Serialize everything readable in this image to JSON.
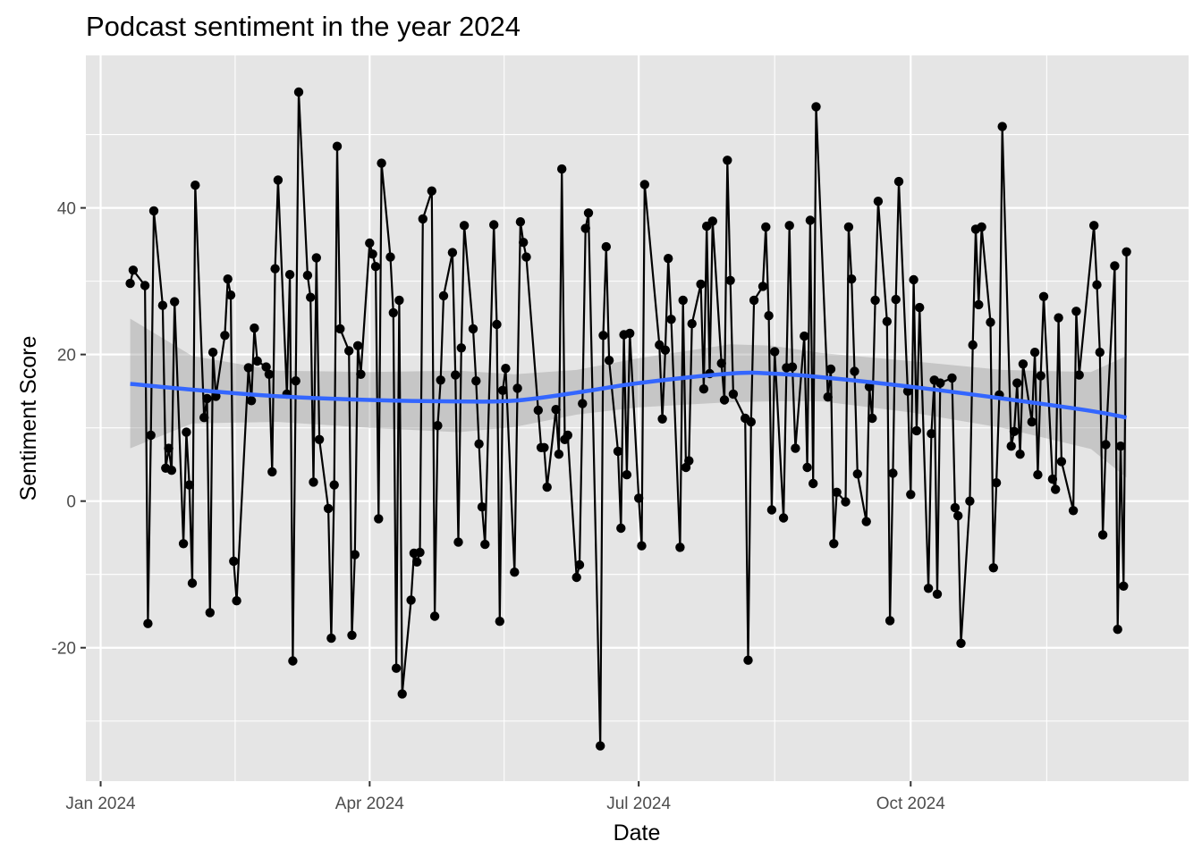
{
  "chart_data": {
    "type": "line",
    "title": "Podcast sentiment in the year 2024",
    "xlabel": "Date",
    "ylabel": "Sentiment Score",
    "x_ticks": [
      {
        "date": "2024-01-01",
        "label": "Jan 2024"
      },
      {
        "date": "2024-04-01",
        "label": "Apr 2024"
      },
      {
        "date": "2024-07-01",
        "label": "Jul 2024"
      },
      {
        "date": "2024-10-01",
        "label": "Oct 2024"
      }
    ],
    "y_ticks": [
      -20,
      0,
      20,
      40
    ],
    "xlim": [
      "2023-12-27",
      "2025-01-03"
    ],
    "ylim": [
      -38.2,
      60.8
    ],
    "grid": true,
    "colors": {
      "panel": "#e5e5e5",
      "grid": "#ffffff",
      "line": "#000000",
      "points": "#000000",
      "smooth": "#3366ff",
      "ribbon": "#999999"
    },
    "series": [
      {
        "type": "line-points",
        "points": [
          [
            "2024-01-11",
            29.7
          ],
          [
            "2024-01-12",
            31.5
          ],
          [
            "2024-01-16",
            29.4
          ],
          [
            "2024-01-17",
            -16.7
          ],
          [
            "2024-01-18",
            9.0
          ],
          [
            "2024-01-19",
            39.6
          ],
          [
            "2024-01-22",
            26.7
          ],
          [
            "2024-01-23",
            4.5
          ],
          [
            "2024-01-24",
            7.2
          ],
          [
            "2024-01-25",
            4.2
          ],
          [
            "2024-01-26",
            27.2
          ],
          [
            "2024-01-29",
            -5.8
          ],
          [
            "2024-01-30",
            9.4
          ],
          [
            "2024-01-31",
            2.2
          ],
          [
            "2024-02-01",
            -11.2
          ],
          [
            "2024-02-02",
            43.1
          ],
          [
            "2024-02-05",
            11.4
          ],
          [
            "2024-02-06",
            14.0
          ],
          [
            "2024-02-07",
            -15.2
          ],
          [
            "2024-02-08",
            20.3
          ],
          [
            "2024-02-09",
            14.3
          ],
          [
            "2024-02-12",
            22.6
          ],
          [
            "2024-02-13",
            30.3
          ],
          [
            "2024-02-14",
            28.1
          ],
          [
            "2024-02-15",
            -8.2
          ],
          [
            "2024-02-16",
            -13.6
          ],
          [
            "2024-02-20",
            18.2
          ],
          [
            "2024-02-21",
            13.7
          ],
          [
            "2024-02-22",
            23.6
          ],
          [
            "2024-02-23",
            19.1
          ],
          [
            "2024-02-26",
            18.3
          ],
          [
            "2024-02-27",
            17.3
          ],
          [
            "2024-02-28",
            4.0
          ],
          [
            "2024-02-29",
            31.7
          ],
          [
            "2024-03-01",
            43.8
          ],
          [
            "2024-03-04",
            14.6
          ],
          [
            "2024-03-05",
            30.9
          ],
          [
            "2024-03-06",
            -21.8
          ],
          [
            "2024-03-07",
            16.4
          ],
          [
            "2024-03-08",
            55.8
          ],
          [
            "2024-03-11",
            30.8
          ],
          [
            "2024-03-12",
            27.8
          ],
          [
            "2024-03-13",
            2.6
          ],
          [
            "2024-03-14",
            33.2
          ],
          [
            "2024-03-15",
            8.4
          ],
          [
            "2024-03-18",
            -1.0
          ],
          [
            "2024-03-19",
            -18.7
          ],
          [
            "2024-03-20",
            2.2
          ],
          [
            "2024-03-21",
            48.4
          ],
          [
            "2024-03-22",
            23.5
          ],
          [
            "2024-03-25",
            20.5
          ],
          [
            "2024-03-26",
            -18.3
          ],
          [
            "2024-03-27",
            -7.3
          ],
          [
            "2024-03-28",
            21.2
          ],
          [
            "2024-03-29",
            17.3
          ],
          [
            "2024-04-01",
            35.2
          ],
          [
            "2024-04-02",
            33.7
          ],
          [
            "2024-04-03",
            32.0
          ],
          [
            "2024-04-04",
            -2.4
          ],
          [
            "2024-04-05",
            46.1
          ],
          [
            "2024-04-08",
            33.3
          ],
          [
            "2024-04-09",
            25.7
          ],
          [
            "2024-04-10",
            -22.8
          ],
          [
            "2024-04-11",
            27.4
          ],
          [
            "2024-04-12",
            -26.3
          ],
          [
            "2024-04-15",
            -13.5
          ],
          [
            "2024-04-16",
            -7.1
          ],
          [
            "2024-04-17",
            -8.3
          ],
          [
            "2024-04-18",
            -7.0
          ],
          [
            "2024-04-19",
            38.5
          ],
          [
            "2024-04-22",
            42.3
          ],
          [
            "2024-04-23",
            -15.7
          ],
          [
            "2024-04-24",
            10.3
          ],
          [
            "2024-04-25",
            16.5
          ],
          [
            "2024-04-26",
            28.0
          ],
          [
            "2024-04-29",
            33.9
          ],
          [
            "2024-04-30",
            17.2
          ],
          [
            "2024-05-01",
            -5.6
          ],
          [
            "2024-05-02",
            20.9
          ],
          [
            "2024-05-03",
            37.6
          ],
          [
            "2024-05-06",
            23.5
          ],
          [
            "2024-05-07",
            16.4
          ],
          [
            "2024-05-08",
            7.8
          ],
          [
            "2024-05-09",
            -0.8
          ],
          [
            "2024-05-10",
            -5.9
          ],
          [
            "2024-05-13",
            37.7
          ],
          [
            "2024-05-14",
            24.1
          ],
          [
            "2024-05-15",
            -16.4
          ],
          [
            "2024-05-16",
            15.1
          ],
          [
            "2024-05-17",
            18.1
          ],
          [
            "2024-05-20",
            -9.7
          ],
          [
            "2024-05-21",
            15.4
          ],
          [
            "2024-05-22",
            38.1
          ],
          [
            "2024-05-23",
            35.3
          ],
          [
            "2024-05-24",
            33.3
          ],
          [
            "2024-05-28",
            12.4
          ],
          [
            "2024-05-29",
            7.3
          ],
          [
            "2024-05-30",
            7.3
          ],
          [
            "2024-05-31",
            1.9
          ],
          [
            "2024-06-03",
            12.5
          ],
          [
            "2024-06-04",
            6.4
          ],
          [
            "2024-06-05",
            45.3
          ],
          [
            "2024-06-06",
            8.4
          ],
          [
            "2024-06-07",
            9.0
          ],
          [
            "2024-06-10",
            -10.4
          ],
          [
            "2024-06-11",
            -8.7
          ],
          [
            "2024-06-12",
            13.3
          ],
          [
            "2024-06-13",
            37.2
          ],
          [
            "2024-06-14",
            39.3
          ],
          [
            "2024-06-18",
            -33.4
          ],
          [
            "2024-06-19",
            22.6
          ],
          [
            "2024-06-20",
            34.7
          ],
          [
            "2024-06-21",
            19.2
          ],
          [
            "2024-06-24",
            6.8
          ],
          [
            "2024-06-25",
            -3.7
          ],
          [
            "2024-06-26",
            22.7
          ],
          [
            "2024-06-27",
            3.6
          ],
          [
            "2024-06-28",
            22.9
          ],
          [
            "2024-07-01",
            0.4
          ],
          [
            "2024-07-02",
            -6.1
          ],
          [
            "2024-07-03",
            43.2
          ],
          [
            "2024-07-08",
            21.3
          ],
          [
            "2024-07-09",
            11.2
          ],
          [
            "2024-07-10",
            20.6
          ],
          [
            "2024-07-11",
            33.1
          ],
          [
            "2024-07-12",
            24.8
          ],
          [
            "2024-07-15",
            -6.3
          ],
          [
            "2024-07-16",
            27.4
          ],
          [
            "2024-07-17",
            4.6
          ],
          [
            "2024-07-18",
            5.5
          ],
          [
            "2024-07-19",
            24.2
          ],
          [
            "2024-07-22",
            29.6
          ],
          [
            "2024-07-23",
            15.3
          ],
          [
            "2024-07-24",
            37.5
          ],
          [
            "2024-07-25",
            17.4
          ],
          [
            "2024-07-26",
            38.2
          ],
          [
            "2024-07-29",
            18.8
          ],
          [
            "2024-07-30",
            13.8
          ],
          [
            "2024-07-31",
            46.5
          ],
          [
            "2024-08-01",
            30.1
          ],
          [
            "2024-08-02",
            14.6
          ],
          [
            "2024-08-06",
            11.3
          ],
          [
            "2024-08-07",
            -21.7
          ],
          [
            "2024-08-08",
            10.8
          ],
          [
            "2024-08-09",
            27.4
          ],
          [
            "2024-08-12",
            29.3
          ],
          [
            "2024-08-13",
            37.4
          ],
          [
            "2024-08-14",
            25.3
          ],
          [
            "2024-08-15",
            -1.2
          ],
          [
            "2024-08-16",
            20.4
          ],
          [
            "2024-08-19",
            -2.3
          ],
          [
            "2024-08-20",
            18.2
          ],
          [
            "2024-08-21",
            37.6
          ],
          [
            "2024-08-22",
            18.3
          ],
          [
            "2024-08-23",
            7.2
          ],
          [
            "2024-08-26",
            22.5
          ],
          [
            "2024-08-27",
            4.6
          ],
          [
            "2024-08-28",
            38.3
          ],
          [
            "2024-08-29",
            2.4
          ],
          [
            "2024-08-30",
            53.8
          ],
          [
            "2024-09-03",
            14.2
          ],
          [
            "2024-09-04",
            18.0
          ],
          [
            "2024-09-05",
            -5.8
          ],
          [
            "2024-09-06",
            1.2
          ],
          [
            "2024-09-09",
            -0.1
          ],
          [
            "2024-09-10",
            37.4
          ],
          [
            "2024-09-11",
            30.3
          ],
          [
            "2024-09-12",
            17.7
          ],
          [
            "2024-09-13",
            3.7
          ],
          [
            "2024-09-16",
            -2.8
          ],
          [
            "2024-09-17",
            15.6
          ],
          [
            "2024-09-18",
            11.3
          ],
          [
            "2024-09-19",
            27.4
          ],
          [
            "2024-09-20",
            40.9
          ],
          [
            "2024-09-23",
            24.5
          ],
          [
            "2024-09-24",
            -16.3
          ],
          [
            "2024-09-25",
            3.8
          ],
          [
            "2024-09-26",
            27.5
          ],
          [
            "2024-09-27",
            43.6
          ],
          [
            "2024-09-30",
            15.0
          ],
          [
            "2024-10-01",
            0.9
          ],
          [
            "2024-10-02",
            30.2
          ],
          [
            "2024-10-03",
            9.6
          ],
          [
            "2024-10-04",
            26.4
          ],
          [
            "2024-10-07",
            -11.9
          ],
          [
            "2024-10-08",
            9.2
          ],
          [
            "2024-10-09",
            16.5
          ],
          [
            "2024-10-10",
            -12.7
          ],
          [
            "2024-10-11",
            16.1
          ],
          [
            "2024-10-15",
            16.8
          ],
          [
            "2024-10-16",
            -0.9
          ],
          [
            "2024-10-17",
            -2.0
          ],
          [
            "2024-10-18",
            -19.4
          ],
          [
            "2024-10-21",
            0.0
          ],
          [
            "2024-10-22",
            21.3
          ],
          [
            "2024-10-23",
            37.1
          ],
          [
            "2024-10-24",
            26.8
          ],
          [
            "2024-10-25",
            37.4
          ],
          [
            "2024-10-28",
            24.4
          ],
          [
            "2024-10-29",
            -9.1
          ],
          [
            "2024-10-30",
            2.5
          ],
          [
            "2024-10-31",
            14.5
          ],
          [
            "2024-11-01",
            51.1
          ],
          [
            "2024-11-04",
            7.5
          ],
          [
            "2024-11-05",
            9.5
          ],
          [
            "2024-11-06",
            16.1
          ],
          [
            "2024-11-07",
            6.4
          ],
          [
            "2024-11-08",
            18.7
          ],
          [
            "2024-11-11",
            10.8
          ],
          [
            "2024-11-12",
            20.3
          ],
          [
            "2024-11-13",
            3.6
          ],
          [
            "2024-11-14",
            17.1
          ],
          [
            "2024-11-15",
            27.9
          ],
          [
            "2024-11-18",
            3.0
          ],
          [
            "2024-11-19",
            1.6
          ],
          [
            "2024-11-20",
            25.0
          ],
          [
            "2024-11-21",
            5.4
          ],
          [
            "2024-11-25",
            -1.3
          ],
          [
            "2024-11-26",
            25.9
          ],
          [
            "2024-11-27",
            17.2
          ],
          [
            "2024-12-02",
            37.6
          ],
          [
            "2024-12-03",
            29.5
          ],
          [
            "2024-12-04",
            20.3
          ],
          [
            "2024-12-05",
            -4.6
          ],
          [
            "2024-12-06",
            7.7
          ],
          [
            "2024-12-09",
            32.1
          ],
          [
            "2024-12-10",
            -17.5
          ],
          [
            "2024-12-11",
            7.5
          ],
          [
            "2024-12-12",
            -11.6
          ],
          [
            "2024-12-13",
            34.0
          ]
        ]
      },
      {
        "type": "smooth",
        "points": [
          [
            "2024-01-11",
            16.0,
            7.2,
            24.9
          ],
          [
            "2024-02-01",
            15.2,
            10.6,
            19.8
          ],
          [
            "2024-03-01",
            14.3,
            10.8,
            17.8
          ],
          [
            "2024-04-01",
            13.8,
            10.0,
            17.6
          ],
          [
            "2024-05-01",
            13.6,
            9.4,
            17.8
          ],
          [
            "2024-05-20",
            13.7,
            10.1,
            17.3
          ],
          [
            "2024-06-10",
            14.8,
            11.8,
            17.9
          ],
          [
            "2024-07-01",
            16.1,
            12.8,
            19.5
          ],
          [
            "2024-08-01",
            17.4,
            13.5,
            21.4
          ],
          [
            "2024-08-15",
            17.4,
            13.6,
            21.2
          ],
          [
            "2024-09-01",
            16.9,
            13.6,
            20.2
          ],
          [
            "2024-10-01",
            15.6,
            12.1,
            19.1
          ],
          [
            "2024-11-01",
            14.0,
            10.0,
            17.9
          ],
          [
            "2024-12-01",
            12.3,
            7.1,
            17.6
          ],
          [
            "2024-12-13",
            11.4,
            3.2,
            19.8
          ]
        ]
      }
    ]
  }
}
